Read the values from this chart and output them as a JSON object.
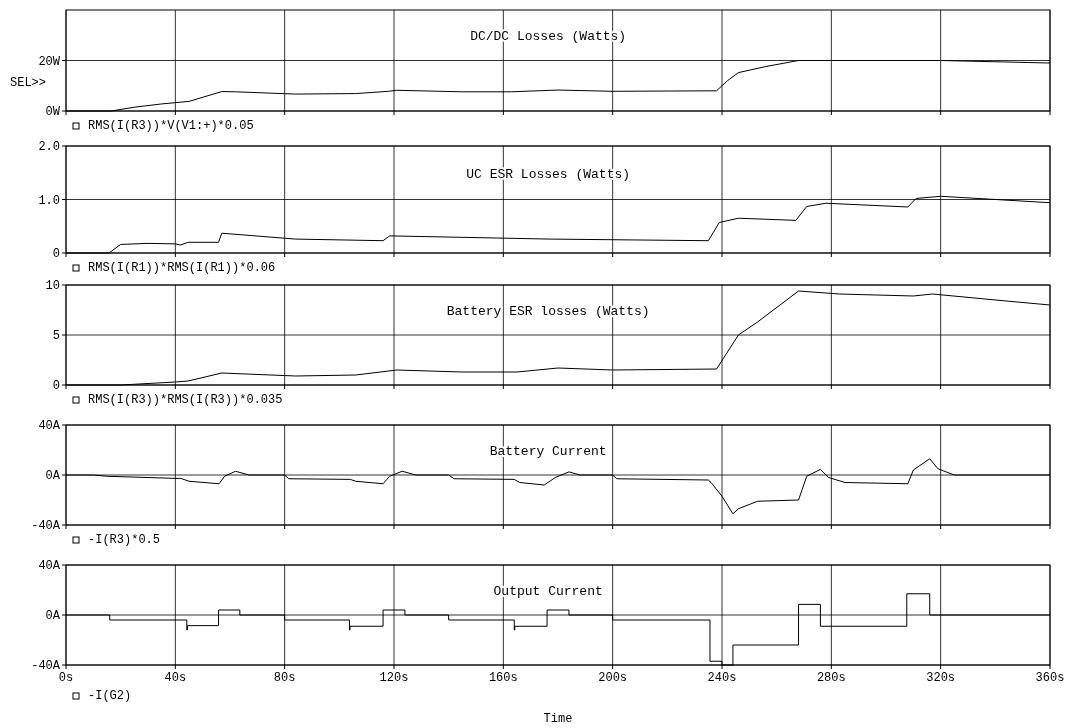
{
  "chart_data": [
    {
      "type": "line",
      "title": "DC/DC Losses (Watts)",
      "annotations": [
        "SEL>>"
      ],
      "x": [
        0,
        16.5,
        25,
        35,
        45,
        57,
        62,
        84,
        106,
        118,
        121,
        145,
        163,
        180,
        200,
        238,
        242,
        246,
        256,
        268,
        295,
        320,
        352,
        360
      ],
      "series": [
        {
          "name": "RMS(I(R3))*V(V1:+)*0.05",
          "color": "#000000",
          "values": [
            0,
            0,
            1.5,
            2.8,
            3.8,
            7.7,
            7.6,
            6.7,
            6.9,
            7.8,
            8.2,
            7.6,
            7.6,
            8.3,
            7.8,
            8.0,
            12,
            15.2,
            17.6,
            20,
            20,
            20,
            19.2,
            19
          ]
        }
      ],
      "xlim": [
        0,
        360
      ],
      "xticks": [
        {
          "value": 0,
          "label": null
        },
        {
          "value": 40,
          "label": null
        },
        {
          "value": 80,
          "label": null
        },
        {
          "value": 120,
          "label": null
        },
        {
          "value": 160,
          "label": null
        },
        {
          "value": 200,
          "label": null
        },
        {
          "value": 240,
          "label": null
        },
        {
          "value": 280,
          "label": null
        },
        {
          "value": 320,
          "label": null
        },
        {
          "value": 360,
          "label": null
        }
      ],
      "ylim": [
        0,
        40
      ],
      "yticks": [
        {
          "value": 0,
          "label": "0W"
        },
        {
          "value": 20,
          "label": "20W"
        }
      ],
      "grid": true,
      "legend": "bottom left",
      "tick_labels": "y"
    },
    {
      "type": "line",
      "title": "UC ESR Losses (Watts)",
      "x": [
        0,
        15.7,
        20,
        30,
        40,
        42,
        44.7,
        55.8,
        57,
        84,
        116,
        118.4,
        177,
        235,
        239,
        246,
        267,
        271,
        278,
        308,
        311,
        320,
        360
      ],
      "series": [
        {
          "name": "RMS(I(R1))*RMS(I(R1))*0.06",
          "color": "#000000",
          "values": [
            0,
            0,
            0.16,
            0.18,
            0.17,
            0.15,
            0.2,
            0.2,
            0.37,
            0.26,
            0.23,
            0.32,
            0.26,
            0.23,
            0.57,
            0.65,
            0.61,
            0.87,
            0.93,
            0.86,
            1.02,
            1.06,
            0.94
          ]
        }
      ],
      "xlim": [
        0,
        360
      ],
      "xticks": [
        {
          "value": 0,
          "label": null
        },
        {
          "value": 40,
          "label": null
        },
        {
          "value": 80,
          "label": null
        },
        {
          "value": 120,
          "label": null
        },
        {
          "value": 160,
          "label": null
        },
        {
          "value": 200,
          "label": null
        },
        {
          "value": 240,
          "label": null
        },
        {
          "value": 280,
          "label": null
        },
        {
          "value": 320,
          "label": null
        },
        {
          "value": 360,
          "label": null
        }
      ],
      "ylim": [
        0,
        2
      ],
      "yticks": [
        0,
        {
          "value": 1,
          "label": "1.0"
        },
        {
          "value": 2,
          "label": "2.0"
        }
      ],
      "grid": true,
      "legend": "bottom left",
      "tick_labels": "y"
    },
    {
      "type": "line",
      "title": "Battery ESR losses (Watts)",
      "x": [
        0,
        20,
        40,
        44.7,
        57,
        84,
        106,
        121,
        145,
        165,
        180,
        200,
        238,
        246,
        253,
        268,
        283,
        310,
        317,
        344,
        360
      ],
      "series": [
        {
          "name": "RMS(I(R3))*RMS(I(R3))*0.035",
          "color": "#000000",
          "values": [
            0,
            0,
            0.3,
            0.4,
            1.2,
            0.9,
            1.0,
            1.5,
            1.3,
            1.3,
            1.7,
            1.5,
            1.6,
            5,
            6.3,
            9.4,
            9.1,
            8.9,
            9.1,
            8.4,
            8.0
          ]
        }
      ],
      "xlim": [
        0,
        360
      ],
      "xticks": [
        {
          "value": 0,
          "label": null
        },
        {
          "value": 40,
          "label": null
        },
        {
          "value": 80,
          "label": null
        },
        {
          "value": 120,
          "label": null
        },
        {
          "value": 160,
          "label": null
        },
        {
          "value": 200,
          "label": null
        },
        {
          "value": 240,
          "label": null
        },
        {
          "value": 280,
          "label": null
        },
        {
          "value": 320,
          "label": null
        },
        {
          "value": 360,
          "label": null
        }
      ],
      "ylim": [
        0,
        10
      ],
      "yticks": [
        0,
        5,
        10
      ],
      "grid": true,
      "legend": "bottom left",
      "tick_labels": "y"
    },
    {
      "type": "line",
      "title": "Battery Current",
      "x": [
        0,
        10,
        15,
        40,
        42,
        45,
        56,
        58,
        62,
        67,
        80,
        81.5,
        104,
        106,
        116,
        118.4,
        123,
        128,
        140,
        142,
        164,
        166,
        175,
        179,
        184,
        188,
        200,
        201.5,
        235,
        236,
        240,
        244,
        246,
        253,
        268,
        271,
        276,
        279,
        285,
        308,
        310,
        316,
        319,
        325,
        360
      ],
      "series": [
        {
          "name": "-I(R3)*0.5",
          "color": "#000000",
          "values": [
            0,
            0,
            -1,
            -2.7,
            -2.7,
            -5,
            -7,
            -1,
            3,
            0,
            0,
            -3,
            -3.5,
            -5,
            -7,
            -1,
            3,
            0,
            0,
            -3,
            -3.5,
            -6,
            -8,
            -2,
            2.5,
            0,
            0,
            -3,
            -4,
            -6,
            -17,
            -31,
            -27,
            -21,
            -20,
            -1,
            4.5,
            -2,
            -6,
            -7,
            4,
            13,
            5,
            0,
            0
          ]
        }
      ],
      "xlim": [
        0,
        360
      ],
      "xticks": [
        {
          "value": 0,
          "label": null
        },
        {
          "value": 40,
          "label": null
        },
        {
          "value": 80,
          "label": null
        },
        {
          "value": 120,
          "label": null
        },
        {
          "value": 160,
          "label": null
        },
        {
          "value": 200,
          "label": null
        },
        {
          "value": 240,
          "label": null
        },
        {
          "value": 280,
          "label": null
        },
        {
          "value": 320,
          "label": null
        },
        {
          "value": 360,
          "label": null
        }
      ],
      "ylim": [
        -40,
        40
      ],
      "yticks": [
        {
          "value": -40,
          "label": "-40A"
        },
        {
          "value": 0,
          "label": "0A"
        },
        {
          "value": 40,
          "label": "40A"
        }
      ],
      "grid": true,
      "legend": "bottom left",
      "tick_labels": "y"
    },
    {
      "type": "step",
      "title": "Output Current",
      "xlabel": "Time",
      "x": [
        0,
        16,
        44.2,
        44.4,
        55.8,
        63.6,
        80,
        103.7,
        103.9,
        116,
        124,
        140,
        164,
        164.2,
        176,
        184,
        200,
        235.6,
        240,
        244,
        268,
        276,
        307.6,
        316,
        360
      ],
      "series": [
        {
          "name": "-I(G2)",
          "color": "#000000",
          "values": [
            0,
            -4,
            -12,
            -8.5,
            4,
            0,
            -4,
            -12,
            -9,
            4,
            0,
            -4,
            -12,
            -9,
            4,
            0,
            -4,
            -37,
            -40,
            -24,
            8.5,
            -9,
            17,
            0,
            0
          ]
        }
      ],
      "xlim": [
        0,
        360
      ],
      "xticks": [
        {
          "value": 0,
          "label": "0s"
        },
        {
          "value": 40,
          "label": "40s"
        },
        {
          "value": 80,
          "label": "80s"
        },
        {
          "value": 120,
          "label": "120s"
        },
        {
          "value": 160,
          "label": "160s"
        },
        {
          "value": 200,
          "label": "200s"
        },
        {
          "value": 240,
          "label": "240s"
        },
        {
          "value": 280,
          "label": "280s"
        },
        {
          "value": 320,
          "label": "320s"
        },
        {
          "value": 360,
          "label": "360s"
        }
      ],
      "ylim": [
        -40,
        40
      ],
      "yticks": [
        {
          "value": -40,
          "label": "-40A"
        },
        {
          "value": 0,
          "label": "0A"
        },
        {
          "value": 40,
          "label": "40A"
        }
      ],
      "grid": true,
      "legend": "bottom left"
    }
  ]
}
